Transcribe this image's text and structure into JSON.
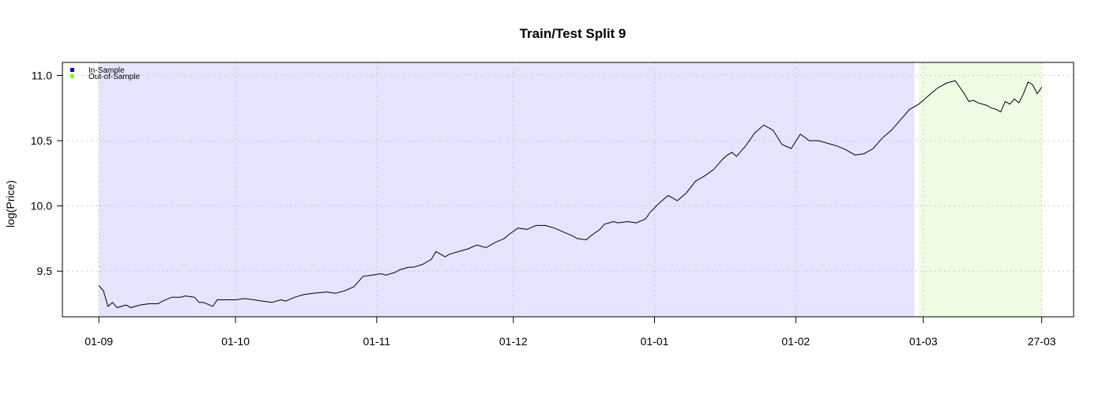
{
  "chart_data": {
    "type": "line",
    "title": "Train/Test Split 9",
    "xlabel": "",
    "ylabel": "log(Price)",
    "ylim": [
      9.15,
      11.1
    ],
    "y_ticks": [
      9.5,
      10.0,
      10.5,
      11.0
    ],
    "y_tick_labels": [
      "9.5",
      "10.0",
      "10.5",
      "11.0"
    ],
    "x_ticks": [
      "01-09",
      "01-10",
      "01-11",
      "01-12",
      "01-01",
      "01-02",
      "01-03",
      "27-03"
    ],
    "x_tick_dates": [
      "2020-09-01",
      "2020-10-01",
      "2020-11-01",
      "2020-12-01",
      "2021-01-01",
      "2021-02-01",
      "2021-03-01",
      "2021-03-27"
    ],
    "xlim": [
      "2020-08-24",
      "2021-04-03"
    ],
    "grid": true,
    "legend_position": "top-left",
    "regions": [
      {
        "name": "In-Sample",
        "start": "2020-09-01",
        "end": "2021-02-27",
        "color": "#e4e4fc",
        "legend_color": "#0000cc"
      },
      {
        "name": "Out-of-Sample",
        "start": "2021-02-28",
        "end": "2021-03-27",
        "color": "#effce4",
        "legend_color": "#7fff00"
      }
    ],
    "series": [
      {
        "color": "#000000",
        "points": [
          [
            "2020-09-01",
            9.39
          ],
          [
            "2020-09-02",
            9.35
          ],
          [
            "2020-09-03",
            9.23
          ],
          [
            "2020-09-04",
            9.26
          ],
          [
            "2020-09-05",
            9.22
          ],
          [
            "2020-09-07",
            9.24
          ],
          [
            "2020-09-08",
            9.22
          ],
          [
            "2020-09-10",
            9.24
          ],
          [
            "2020-09-12",
            9.25
          ],
          [
            "2020-09-14",
            9.25
          ],
          [
            "2020-09-15",
            9.27
          ],
          [
            "2020-09-17",
            9.3
          ],
          [
            "2020-09-19",
            9.3
          ],
          [
            "2020-09-20",
            9.31
          ],
          [
            "2020-09-22",
            9.3
          ],
          [
            "2020-09-23",
            9.26
          ],
          [
            "2020-09-24",
            9.26
          ],
          [
            "2020-09-26",
            9.23
          ],
          [
            "2020-09-27",
            9.28
          ],
          [
            "2020-09-29",
            9.28
          ],
          [
            "2020-10-01",
            9.28
          ],
          [
            "2020-10-03",
            9.29
          ],
          [
            "2020-10-05",
            9.28
          ],
          [
            "2020-10-07",
            9.27
          ],
          [
            "2020-10-09",
            9.26
          ],
          [
            "2020-10-11",
            9.28
          ],
          [
            "2020-10-12",
            9.27
          ],
          [
            "2020-10-14",
            9.3
          ],
          [
            "2020-10-16",
            9.32
          ],
          [
            "2020-10-18",
            9.33
          ],
          [
            "2020-10-21",
            9.34
          ],
          [
            "2020-10-23",
            9.33
          ],
          [
            "2020-10-25",
            9.35
          ],
          [
            "2020-10-27",
            9.38
          ],
          [
            "2020-10-29",
            9.46
          ],
          [
            "2020-10-31",
            9.47
          ],
          [
            "2020-11-02",
            9.48
          ],
          [
            "2020-11-03",
            9.47
          ],
          [
            "2020-11-05",
            9.49
          ],
          [
            "2020-11-06",
            9.51
          ],
          [
            "2020-11-08",
            9.53
          ],
          [
            "2020-11-09",
            9.53
          ],
          [
            "2020-11-11",
            9.55
          ],
          [
            "2020-11-13",
            9.59
          ],
          [
            "2020-11-14",
            9.65
          ],
          [
            "2020-11-15",
            9.63
          ],
          [
            "2020-11-16",
            9.61
          ],
          [
            "2020-11-17",
            9.63
          ],
          [
            "2020-11-19",
            9.65
          ],
          [
            "2020-11-21",
            9.67
          ],
          [
            "2020-11-23",
            9.7
          ],
          [
            "2020-11-25",
            9.68
          ],
          [
            "2020-11-27",
            9.72
          ],
          [
            "2020-11-29",
            9.75
          ],
          [
            "2020-11-30",
            9.78
          ],
          [
            "2020-12-02",
            9.83
          ],
          [
            "2020-12-04",
            9.82
          ],
          [
            "2020-12-06",
            9.85
          ],
          [
            "2020-12-08",
            9.85
          ],
          [
            "2020-12-10",
            9.83
          ],
          [
            "2020-12-12",
            9.8
          ],
          [
            "2020-12-14",
            9.77
          ],
          [
            "2020-12-15",
            9.75
          ],
          [
            "2020-12-17",
            9.74
          ],
          [
            "2020-12-18",
            9.77
          ],
          [
            "2020-12-20",
            9.82
          ],
          [
            "2020-12-21",
            9.86
          ],
          [
            "2020-12-23",
            9.88
          ],
          [
            "2020-12-24",
            9.87
          ],
          [
            "2020-12-26",
            9.88
          ],
          [
            "2020-12-28",
            9.87
          ],
          [
            "2020-12-30",
            9.9
          ],
          [
            "2020-12-31",
            9.95
          ],
          [
            "2021-01-02",
            10.02
          ],
          [
            "2021-01-04",
            10.08
          ],
          [
            "2021-01-06",
            10.04
          ],
          [
            "2021-01-08",
            10.1
          ],
          [
            "2021-01-10",
            10.19
          ],
          [
            "2021-01-12",
            10.23
          ],
          [
            "2021-01-14",
            10.28
          ],
          [
            "2021-01-16",
            10.36
          ],
          [
            "2021-01-17",
            10.39
          ],
          [
            "2021-01-18",
            10.41
          ],
          [
            "2021-01-19",
            10.38
          ],
          [
            "2021-01-21",
            10.46
          ],
          [
            "2021-01-23",
            10.56
          ],
          [
            "2021-01-25",
            10.62
          ],
          [
            "2021-01-27",
            10.58
          ],
          [
            "2021-01-29",
            10.47
          ],
          [
            "2021-01-31",
            10.44
          ],
          [
            "2021-02-02",
            10.55
          ],
          [
            "2021-02-04",
            10.5
          ],
          [
            "2021-02-06",
            10.5
          ],
          [
            "2021-02-08",
            10.48
          ],
          [
            "2021-02-10",
            10.46
          ],
          [
            "2021-02-12",
            10.43
          ],
          [
            "2021-02-14",
            10.39
          ],
          [
            "2021-02-16",
            10.4
          ],
          [
            "2021-02-18",
            10.44
          ],
          [
            "2021-02-20",
            10.52
          ],
          [
            "2021-02-22",
            10.58
          ],
          [
            "2021-02-24",
            10.66
          ],
          [
            "2021-02-26",
            10.74
          ],
          [
            "2021-02-28",
            10.78
          ],
          [
            "2021-03-02",
            10.84
          ],
          [
            "2021-03-04",
            10.9
          ],
          [
            "2021-03-06",
            10.94
          ],
          [
            "2021-03-08",
            10.96
          ],
          [
            "2021-03-10",
            10.86
          ],
          [
            "2021-03-11",
            10.8
          ],
          [
            "2021-03-12",
            10.81
          ],
          [
            "2021-03-13",
            10.79
          ],
          [
            "2021-03-15",
            10.77
          ],
          [
            "2021-03-16",
            10.75
          ],
          [
            "2021-03-17",
            10.74
          ],
          [
            "2021-03-18",
            10.72
          ],
          [
            "2021-03-19",
            10.8
          ],
          [
            "2021-03-20",
            10.78
          ],
          [
            "2021-03-21",
            10.82
          ],
          [
            "2021-03-22",
            10.79
          ],
          [
            "2021-03-23",
            10.86
          ],
          [
            "2021-03-24",
            10.95
          ],
          [
            "2021-03-25",
            10.93
          ],
          [
            "2021-03-26",
            10.86
          ],
          [
            "2021-03-27",
            10.91
          ]
        ]
      }
    ]
  }
}
